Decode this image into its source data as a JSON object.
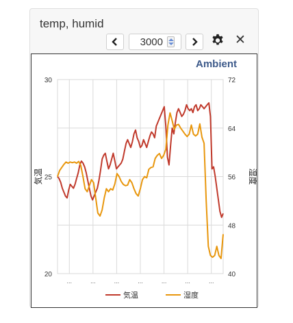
{
  "widget": {
    "title": "temp, humid",
    "interval_value": "3000",
    "chart": {
      "brand": "Ambient",
      "y_left_label": "気温",
      "y_right_label": "湿度",
      "x_tick_label": "..."
    }
  },
  "colors": {
    "temp": "#c0392b",
    "humid": "#e8960c",
    "brand": "#3d5a8a"
  },
  "chart_data": {
    "type": "line",
    "title": "",
    "y_left": {
      "label": "気温",
      "ylim": [
        20,
        30
      ],
      "ticks": [
        20,
        25,
        30
      ]
    },
    "y_right": {
      "label": "湿度",
      "ylim": [
        40,
        72
      ],
      "ticks": [
        40,
        48,
        56,
        64,
        72
      ]
    },
    "grid": true,
    "legend": "bottom",
    "x_tick_labels": [
      "...",
      "...",
      "...",
      "...",
      "...",
      "...",
      "..."
    ],
    "series": [
      {
        "name": "気温",
        "axis": "left",
        "values": [
          25.0,
          24.9,
          24.7,
          24.4,
          24.2,
          24.0,
          23.9,
          24.3,
          24.6,
          24.5,
          24.4,
          24.6,
          24.9,
          25.2,
          25.6,
          25.8,
          25.7,
          25.5,
          25.2,
          24.8,
          24.4,
          24.0,
          23.8,
          24.0,
          24.2,
          24.4,
          24.8,
          25.3,
          25.9,
          26.1,
          26.2,
          25.8,
          25.4,
          25.6,
          25.9,
          26.2,
          25.8,
          25.4,
          25.5,
          25.6,
          25.7,
          25.9,
          26.3,
          26.7,
          26.9,
          26.7,
          26.5,
          26.8,
          27.2,
          27.4,
          27.0,
          26.8,
          26.5,
          26.6,
          26.9,
          26.7,
          26.5,
          26.8,
          27.1,
          27.3,
          27.2,
          27.0,
          27.6,
          27.8,
          28.0,
          28.2,
          28.4,
          28.6,
          27.6,
          26.0,
          25.6,
          26.6,
          27.5,
          27.2,
          27.8,
          28.3,
          28.5,
          28.3,
          28.1,
          28.2,
          28.4,
          28.7,
          28.5,
          28.4,
          28.5,
          28.3,
          28.6,
          28.7,
          28.4,
          28.5,
          28.7,
          28.6,
          28.5,
          28.6,
          28.7,
          28.8,
          28.1,
          25.4,
          25.5,
          25.0,
          24.4,
          23.8,
          23.2,
          22.9,
          23.1
        ]
      },
      {
        "name": "湿度",
        "axis": "right",
        "values": [
          56.0,
          57.0,
          57.5,
          58.0,
          58.4,
          58.2,
          58.4,
          58.3,
          58.4,
          58.2,
          58.5,
          57.8,
          56.0,
          54.0,
          53.5,
          54.5,
          55.5,
          55.0,
          52.5,
          50.0,
          49.5,
          50.5,
          52.5,
          54.0,
          53.5,
          54.0,
          53.8,
          54.8,
          56.5,
          56.0,
          55.2,
          54.7,
          54.5,
          54.6,
          55.5,
          55.0,
          54.0,
          53.2,
          52.8,
          54.0,
          55.5,
          56.0,
          55.8,
          57.2,
          57.5,
          57.6,
          59.0,
          59.5,
          59.8,
          59.0,
          59.5,
          60.5,
          64.5,
          66.5,
          65.2,
          63.8,
          64.5,
          64.6,
          64.0,
          63.5,
          63.0,
          62.6,
          63.0,
          64.5,
          63.0,
          62.7,
          63.0,
          64.7,
          62.5,
          61.5,
          52.0,
          44.5,
          43.0,
          42.7,
          43.0,
          44.5,
          43.0,
          42.5,
          46.5
        ]
      }
    ]
  }
}
